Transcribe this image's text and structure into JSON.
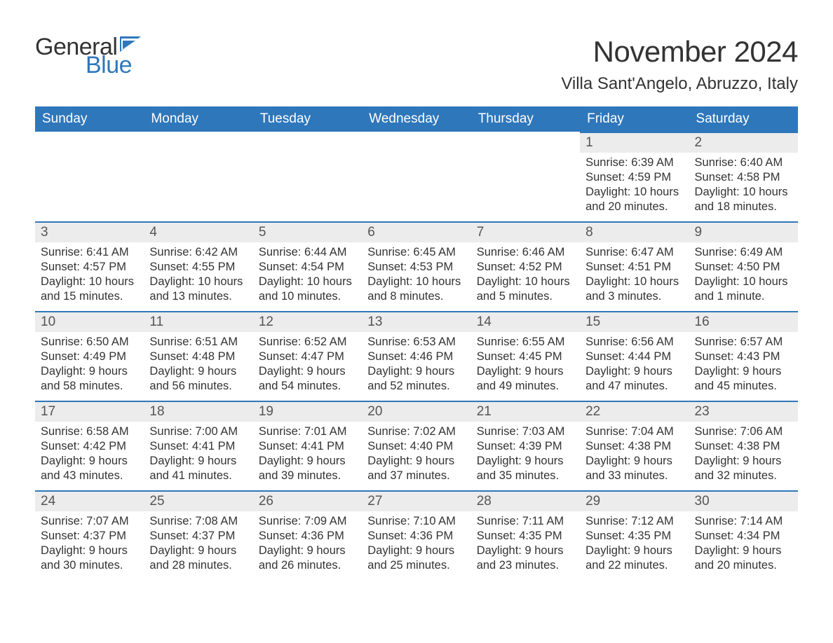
{
  "logo": {
    "text1": "General",
    "text2": "Blue"
  },
  "title": "November 2024",
  "location": "Villa Sant'Angelo, Abruzzo, Italy",
  "colors": {
    "brand_blue": "#2f77bb",
    "header_text": "#ffffff",
    "daynum_bg": "#ececec",
    "body_text": "#333333",
    "page_bg": "#ffffff"
  },
  "typography": {
    "title_fontsize": 42,
    "location_fontsize": 24,
    "dayhead_fontsize": 19,
    "daynum_fontsize": 19,
    "body_fontsize": 16.5,
    "font_family": "Arial"
  },
  "layout": {
    "columns": 7,
    "rows": 5,
    "first_weekday": "Sunday"
  },
  "weekdays": [
    "Sunday",
    "Monday",
    "Tuesday",
    "Wednesday",
    "Thursday",
    "Friday",
    "Saturday"
  ],
  "weeks": [
    [
      {
        "day": null
      },
      {
        "day": null
      },
      {
        "day": null
      },
      {
        "day": null
      },
      {
        "day": null
      },
      {
        "day": "1",
        "sunrise": "Sunrise: 6:39 AM",
        "sunset": "Sunset: 4:59 PM",
        "daylight1": "Daylight: 10 hours",
        "daylight2": "and 20 minutes."
      },
      {
        "day": "2",
        "sunrise": "Sunrise: 6:40 AM",
        "sunset": "Sunset: 4:58 PM",
        "daylight1": "Daylight: 10 hours",
        "daylight2": "and 18 minutes."
      }
    ],
    [
      {
        "day": "3",
        "sunrise": "Sunrise: 6:41 AM",
        "sunset": "Sunset: 4:57 PM",
        "daylight1": "Daylight: 10 hours",
        "daylight2": "and 15 minutes."
      },
      {
        "day": "4",
        "sunrise": "Sunrise: 6:42 AM",
        "sunset": "Sunset: 4:55 PM",
        "daylight1": "Daylight: 10 hours",
        "daylight2": "and 13 minutes."
      },
      {
        "day": "5",
        "sunrise": "Sunrise: 6:44 AM",
        "sunset": "Sunset: 4:54 PM",
        "daylight1": "Daylight: 10 hours",
        "daylight2": "and 10 minutes."
      },
      {
        "day": "6",
        "sunrise": "Sunrise: 6:45 AM",
        "sunset": "Sunset: 4:53 PM",
        "daylight1": "Daylight: 10 hours",
        "daylight2": "and 8 minutes."
      },
      {
        "day": "7",
        "sunrise": "Sunrise: 6:46 AM",
        "sunset": "Sunset: 4:52 PM",
        "daylight1": "Daylight: 10 hours",
        "daylight2": "and 5 minutes."
      },
      {
        "day": "8",
        "sunrise": "Sunrise: 6:47 AM",
        "sunset": "Sunset: 4:51 PM",
        "daylight1": "Daylight: 10 hours",
        "daylight2": "and 3 minutes."
      },
      {
        "day": "9",
        "sunrise": "Sunrise: 6:49 AM",
        "sunset": "Sunset: 4:50 PM",
        "daylight1": "Daylight: 10 hours",
        "daylight2": "and 1 minute."
      }
    ],
    [
      {
        "day": "10",
        "sunrise": "Sunrise: 6:50 AM",
        "sunset": "Sunset: 4:49 PM",
        "daylight1": "Daylight: 9 hours",
        "daylight2": "and 58 minutes."
      },
      {
        "day": "11",
        "sunrise": "Sunrise: 6:51 AM",
        "sunset": "Sunset: 4:48 PM",
        "daylight1": "Daylight: 9 hours",
        "daylight2": "and 56 minutes."
      },
      {
        "day": "12",
        "sunrise": "Sunrise: 6:52 AM",
        "sunset": "Sunset: 4:47 PM",
        "daylight1": "Daylight: 9 hours",
        "daylight2": "and 54 minutes."
      },
      {
        "day": "13",
        "sunrise": "Sunrise: 6:53 AM",
        "sunset": "Sunset: 4:46 PM",
        "daylight1": "Daylight: 9 hours",
        "daylight2": "and 52 minutes."
      },
      {
        "day": "14",
        "sunrise": "Sunrise: 6:55 AM",
        "sunset": "Sunset: 4:45 PM",
        "daylight1": "Daylight: 9 hours",
        "daylight2": "and 49 minutes."
      },
      {
        "day": "15",
        "sunrise": "Sunrise: 6:56 AM",
        "sunset": "Sunset: 4:44 PM",
        "daylight1": "Daylight: 9 hours",
        "daylight2": "and 47 minutes."
      },
      {
        "day": "16",
        "sunrise": "Sunrise: 6:57 AM",
        "sunset": "Sunset: 4:43 PM",
        "daylight1": "Daylight: 9 hours",
        "daylight2": "and 45 minutes."
      }
    ],
    [
      {
        "day": "17",
        "sunrise": "Sunrise: 6:58 AM",
        "sunset": "Sunset: 4:42 PM",
        "daylight1": "Daylight: 9 hours",
        "daylight2": "and 43 minutes."
      },
      {
        "day": "18",
        "sunrise": "Sunrise: 7:00 AM",
        "sunset": "Sunset: 4:41 PM",
        "daylight1": "Daylight: 9 hours",
        "daylight2": "and 41 minutes."
      },
      {
        "day": "19",
        "sunrise": "Sunrise: 7:01 AM",
        "sunset": "Sunset: 4:41 PM",
        "daylight1": "Daylight: 9 hours",
        "daylight2": "and 39 minutes."
      },
      {
        "day": "20",
        "sunrise": "Sunrise: 7:02 AM",
        "sunset": "Sunset: 4:40 PM",
        "daylight1": "Daylight: 9 hours",
        "daylight2": "and 37 minutes."
      },
      {
        "day": "21",
        "sunrise": "Sunrise: 7:03 AM",
        "sunset": "Sunset: 4:39 PM",
        "daylight1": "Daylight: 9 hours",
        "daylight2": "and 35 minutes."
      },
      {
        "day": "22",
        "sunrise": "Sunrise: 7:04 AM",
        "sunset": "Sunset: 4:38 PM",
        "daylight1": "Daylight: 9 hours",
        "daylight2": "and 33 minutes."
      },
      {
        "day": "23",
        "sunrise": "Sunrise: 7:06 AM",
        "sunset": "Sunset: 4:38 PM",
        "daylight1": "Daylight: 9 hours",
        "daylight2": "and 32 minutes."
      }
    ],
    [
      {
        "day": "24",
        "sunrise": "Sunrise: 7:07 AM",
        "sunset": "Sunset: 4:37 PM",
        "daylight1": "Daylight: 9 hours",
        "daylight2": "and 30 minutes."
      },
      {
        "day": "25",
        "sunrise": "Sunrise: 7:08 AM",
        "sunset": "Sunset: 4:37 PM",
        "daylight1": "Daylight: 9 hours",
        "daylight2": "and 28 minutes."
      },
      {
        "day": "26",
        "sunrise": "Sunrise: 7:09 AM",
        "sunset": "Sunset: 4:36 PM",
        "daylight1": "Daylight: 9 hours",
        "daylight2": "and 26 minutes."
      },
      {
        "day": "27",
        "sunrise": "Sunrise: 7:10 AM",
        "sunset": "Sunset: 4:36 PM",
        "daylight1": "Daylight: 9 hours",
        "daylight2": "and 25 minutes."
      },
      {
        "day": "28",
        "sunrise": "Sunrise: 7:11 AM",
        "sunset": "Sunset: 4:35 PM",
        "daylight1": "Daylight: 9 hours",
        "daylight2": "and 23 minutes."
      },
      {
        "day": "29",
        "sunrise": "Sunrise: 7:12 AM",
        "sunset": "Sunset: 4:35 PM",
        "daylight1": "Daylight: 9 hours",
        "daylight2": "and 22 minutes."
      },
      {
        "day": "30",
        "sunrise": "Sunrise: 7:14 AM",
        "sunset": "Sunset: 4:34 PM",
        "daylight1": "Daylight: 9 hours",
        "daylight2": "and 20 minutes."
      }
    ]
  ]
}
